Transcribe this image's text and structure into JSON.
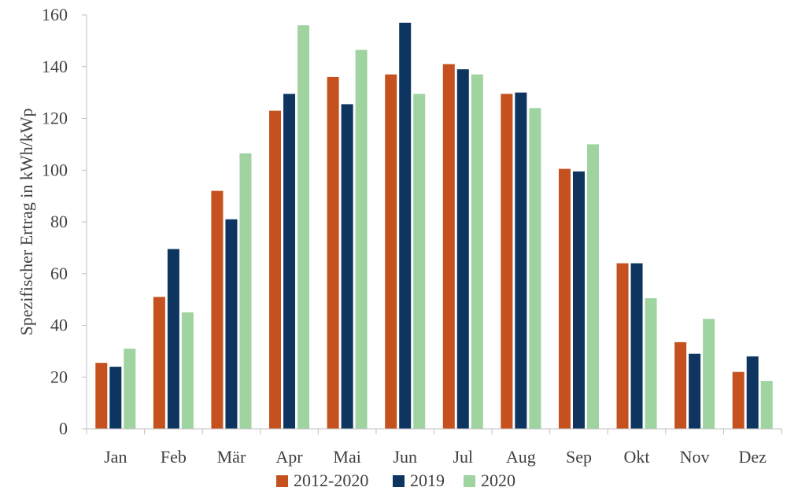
{
  "chart_data": {
    "type": "bar",
    "title": "",
    "xlabel": "",
    "ylabel": "Spezifischer Ertrag in kWh/kWp",
    "ylim": [
      0,
      160
    ],
    "yticks": [
      0,
      20,
      40,
      60,
      80,
      100,
      120,
      140,
      160
    ],
    "grid": false,
    "legend_position": "bottom",
    "categories": [
      "Jan",
      "Feb",
      "Mär",
      "Apr",
      "Mai",
      "Jun",
      "Jul",
      "Aug",
      "Sep",
      "Okt",
      "Nov",
      "Dez"
    ],
    "series": [
      {
        "name": "2012-2020",
        "color": "#c5511f",
        "values": [
          25.5,
          51,
          92,
          123,
          136,
          137,
          141,
          129.5,
          100.5,
          64,
          33.5,
          22
        ]
      },
      {
        "name": "2019",
        "color": "#0d3560",
        "values": [
          24,
          69.5,
          81,
          129.5,
          125.5,
          157,
          139,
          130,
          99.5,
          64,
          29,
          28
        ]
      },
      {
        "name": "2020",
        "color": "#9fd39f",
        "values": [
          31,
          45,
          106.5,
          156,
          146.5,
          129.5,
          137,
          124,
          110,
          50.5,
          42.5,
          18.5
        ]
      }
    ]
  }
}
